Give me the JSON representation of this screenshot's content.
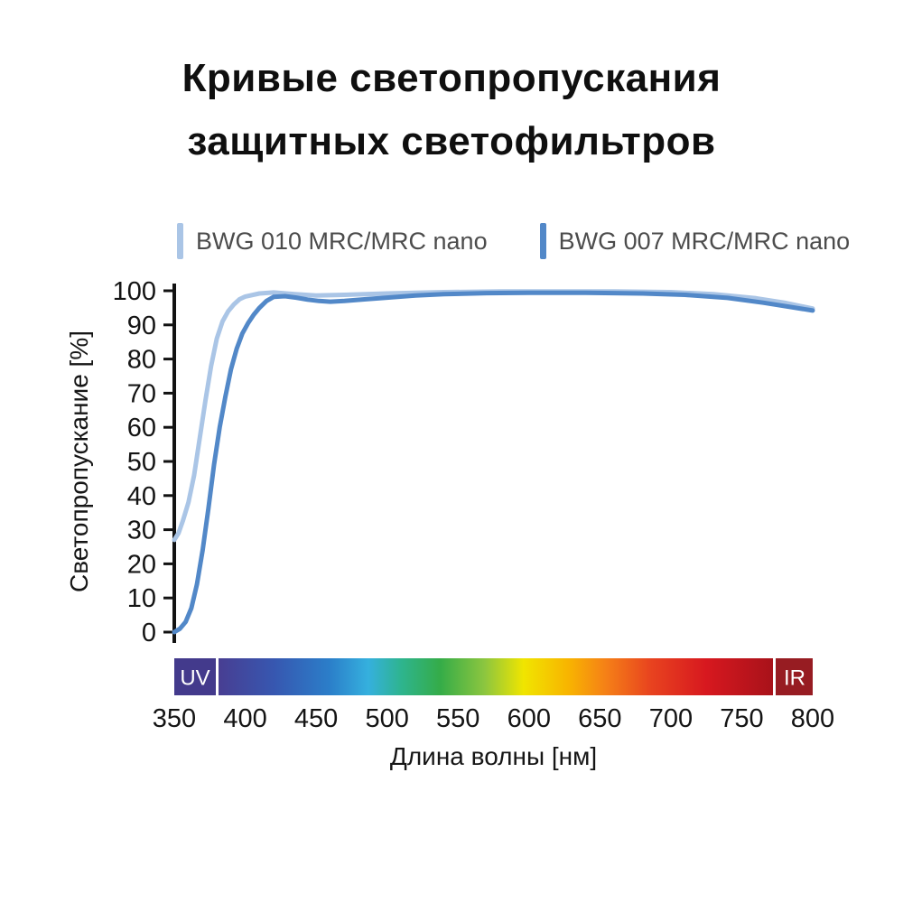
{
  "title": {
    "line1": "Кривые светопропускания",
    "line2": "защитных светофильтров"
  },
  "legend": [
    {
      "label": "BWG 010 MRC/MRC nano",
      "color": "#aac5e6"
    },
    {
      "label": "BWG 007 MRC/MRC nano",
      "color": "#5288c8"
    }
  ],
  "chart_data": {
    "type": "line",
    "title": "Кривые светопропускания защитных светофильтров",
    "xlabel": "Длина волны [нм]",
    "ylabel": "Светопропускание [%]",
    "xlim": [
      350,
      800
    ],
    "ylim": [
      0,
      100
    ],
    "x_ticks": [
      350,
      400,
      450,
      500,
      550,
      600,
      650,
      700,
      750,
      800
    ],
    "y_ticks": [
      0,
      10,
      20,
      30,
      40,
      50,
      60,
      70,
      80,
      90,
      100
    ],
    "grid": false,
    "legend_position": "top",
    "series": [
      {
        "name": "BWG 010 MRC/MRC nano",
        "color": "#aac5e6",
        "points": [
          [
            350,
            27
          ],
          [
            353,
            29
          ],
          [
            356,
            32.5
          ],
          [
            360,
            38
          ],
          [
            364,
            46
          ],
          [
            368,
            57
          ],
          [
            372,
            68
          ],
          [
            376,
            78
          ],
          [
            380,
            86
          ],
          [
            384,
            91
          ],
          [
            388,
            94
          ],
          [
            392,
            96
          ],
          [
            396,
            97.5
          ],
          [
            400,
            98.3
          ],
          [
            410,
            99.2
          ],
          [
            420,
            99.5
          ],
          [
            435,
            99
          ],
          [
            450,
            98.6
          ],
          [
            470,
            98.8
          ],
          [
            500,
            99.2
          ],
          [
            540,
            99.6
          ],
          [
            580,
            99.8
          ],
          [
            620,
            99.8
          ],
          [
            660,
            99.8
          ],
          [
            700,
            99.6
          ],
          [
            730,
            99
          ],
          [
            760,
            97.8
          ],
          [
            780,
            96.5
          ],
          [
            800,
            94.8
          ]
        ]
      },
      {
        "name": "BWG 007 MRC/MRC nano",
        "color": "#5288c8",
        "points": [
          [
            350,
            0
          ],
          [
            354,
            1
          ],
          [
            358,
            3
          ],
          [
            362,
            7
          ],
          [
            366,
            14
          ],
          [
            370,
            24
          ],
          [
            374,
            36
          ],
          [
            378,
            49
          ],
          [
            382,
            60
          ],
          [
            386,
            69
          ],
          [
            390,
            77
          ],
          [
            394,
            83
          ],
          [
            398,
            87.5
          ],
          [
            402,
            90.5
          ],
          [
            406,
            93
          ],
          [
            410,
            95
          ],
          [
            415,
            97
          ],
          [
            420,
            98.2
          ],
          [
            428,
            98.4
          ],
          [
            436,
            98
          ],
          [
            444,
            97.4
          ],
          [
            452,
            97
          ],
          [
            460,
            96.8
          ],
          [
            470,
            97
          ],
          [
            485,
            97.5
          ],
          [
            500,
            98
          ],
          [
            520,
            98.6
          ],
          [
            540,
            99
          ],
          [
            570,
            99.3
          ],
          [
            600,
            99.4
          ],
          [
            640,
            99.4
          ],
          [
            680,
            99.2
          ],
          [
            710,
            98.8
          ],
          [
            740,
            97.9
          ],
          [
            765,
            96.5
          ],
          [
            785,
            95.2
          ],
          [
            800,
            94.2
          ]
        ]
      }
    ],
    "spectrum_bar": {
      "uv_label": "UV",
      "ir_label": "IR",
      "uv_color": "#433a8c",
      "ir_color": "#971c22",
      "gradient": [
        {
          "offset": "0%",
          "color": "#483e92"
        },
        {
          "offset": "10%",
          "color": "#3757b0"
        },
        {
          "offset": "20%",
          "color": "#2b7ec9"
        },
        {
          "offset": "27%",
          "color": "#35b0de"
        },
        {
          "offset": "33%",
          "color": "#2eb48e"
        },
        {
          "offset": "40%",
          "color": "#35ac48"
        },
        {
          "offset": "48%",
          "color": "#8cc63f"
        },
        {
          "offset": "55%",
          "color": "#f0e500"
        },
        {
          "offset": "63%",
          "color": "#f8b500"
        },
        {
          "offset": "70%",
          "color": "#f57f17"
        },
        {
          "offset": "78%",
          "color": "#e8431f"
        },
        {
          "offset": "88%",
          "color": "#d7181f"
        },
        {
          "offset": "100%",
          "color": "#a8121a"
        }
      ]
    }
  }
}
